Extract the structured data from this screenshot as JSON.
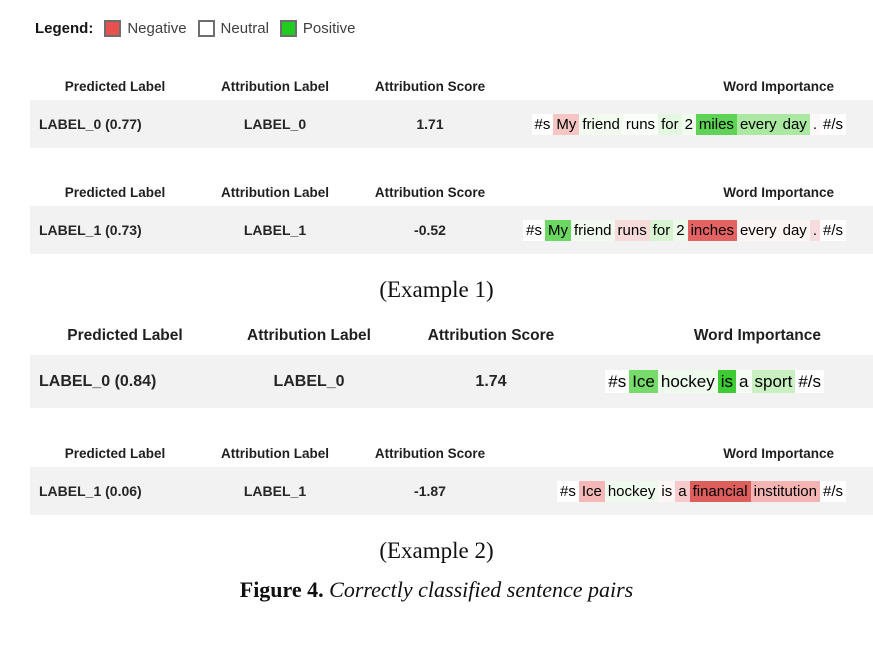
{
  "legend": {
    "title": "Legend:",
    "items": [
      {
        "name": "negative",
        "label": "Negative",
        "color": "#e8514f"
      },
      {
        "name": "neutral",
        "label": "Neutral",
        "color": "#ffffff"
      },
      {
        "name": "positive",
        "label": "Positive",
        "color": "#1fcc1f"
      }
    ]
  },
  "columns": [
    "Predicted Label",
    "Attribution Label",
    "Attribution Score",
    "Word Importance"
  ],
  "tables": [
    {
      "predicted_label": "LABEL_0 (0.77)",
      "attribution_label": "LABEL_0",
      "attribution_score": "1.71",
      "tokens": [
        {
          "text": "#s",
          "bg": "#ffffff"
        },
        {
          "text": "My",
          "bg": "#f6c6c5"
        },
        {
          "text": "friend",
          "bg": "#f3fbf1"
        },
        {
          "text": "runs",
          "bg": "#fbfdfa"
        },
        {
          "text": "for",
          "bg": "#e4f7e0"
        },
        {
          "text": "2",
          "bg": "#f1fbee"
        },
        {
          "text": "miles",
          "bg": "#5fd355"
        },
        {
          "text": "every",
          "bg": "#abe9a2"
        },
        {
          "text": "day",
          "bg": "#abe9a2"
        },
        {
          "text": ".",
          "bg": "#fdf8f8"
        },
        {
          "text": "#/s",
          "bg": "#ffffff"
        }
      ]
    },
    {
      "predicted_label": "LABEL_1 (0.73)",
      "attribution_label": "LABEL_1",
      "attribution_score": "-0.52",
      "tokens": [
        {
          "text": "#s",
          "bg": "#ffffff"
        },
        {
          "text": "My",
          "bg": "#6cd763"
        },
        {
          "text": "friend",
          "bg": "#f0faee"
        },
        {
          "text": "runs",
          "bg": "#f7dbda"
        },
        {
          "text": "for",
          "bg": "#d7f3d1"
        },
        {
          "text": "2",
          "bg": "#edf9ea"
        },
        {
          "text": "inches",
          "bg": "#e26361"
        },
        {
          "text": "every",
          "bg": "#fcf3f3"
        },
        {
          "text": "day",
          "bg": "#fcf3f3"
        },
        {
          "text": ".",
          "bg": "#f6dcdc"
        },
        {
          "text": "#/s",
          "bg": "#ffffff"
        }
      ]
    },
    {
      "predicted_label": "LABEL_0 (0.84)",
      "attribution_label": "LABEL_0",
      "attribution_score": "1.74",
      "tokens": [
        {
          "text": "#s",
          "bg": "#ffffff"
        },
        {
          "text": "Ice",
          "bg": "#77db6c"
        },
        {
          "text": "hockey",
          "bg": "#eefaec"
        },
        {
          "text": "is",
          "bg": "#3ecb33"
        },
        {
          "text": "a",
          "bg": "#f6fdf4"
        },
        {
          "text": "sport",
          "bg": "#c8f0c1"
        },
        {
          "text": "#/s",
          "bg": "#ffffff"
        }
      ]
    },
    {
      "predicted_label": "LABEL_1 (0.06)",
      "attribution_label": "LABEL_1",
      "attribution_score": "-1.87",
      "tokens": [
        {
          "text": "#s",
          "bg": "#ffffff"
        },
        {
          "text": "Ice",
          "bg": "#f3b8b7"
        },
        {
          "text": "hockey",
          "bg": "#effaee"
        },
        {
          "text": "is",
          "bg": "#fdf6f6"
        },
        {
          "text": "a",
          "bg": "#f6caca"
        },
        {
          "text": "financial",
          "bg": "#dd5f5c"
        },
        {
          "text": "institution",
          "bg": "#f3b4b3"
        },
        {
          "text": "#/s",
          "bg": "#ffffff"
        }
      ]
    }
  ],
  "captions": {
    "example1": "(Example 1)",
    "example2": "(Example 2)"
  },
  "figure": {
    "label": "Figure 4.",
    "text": "Correctly classified sentence pairs"
  },
  "colors": {
    "row_background": "#f2f2f2",
    "negative": "#e8514f",
    "neutral": "#ffffff",
    "positive": "#1fcc1f"
  }
}
